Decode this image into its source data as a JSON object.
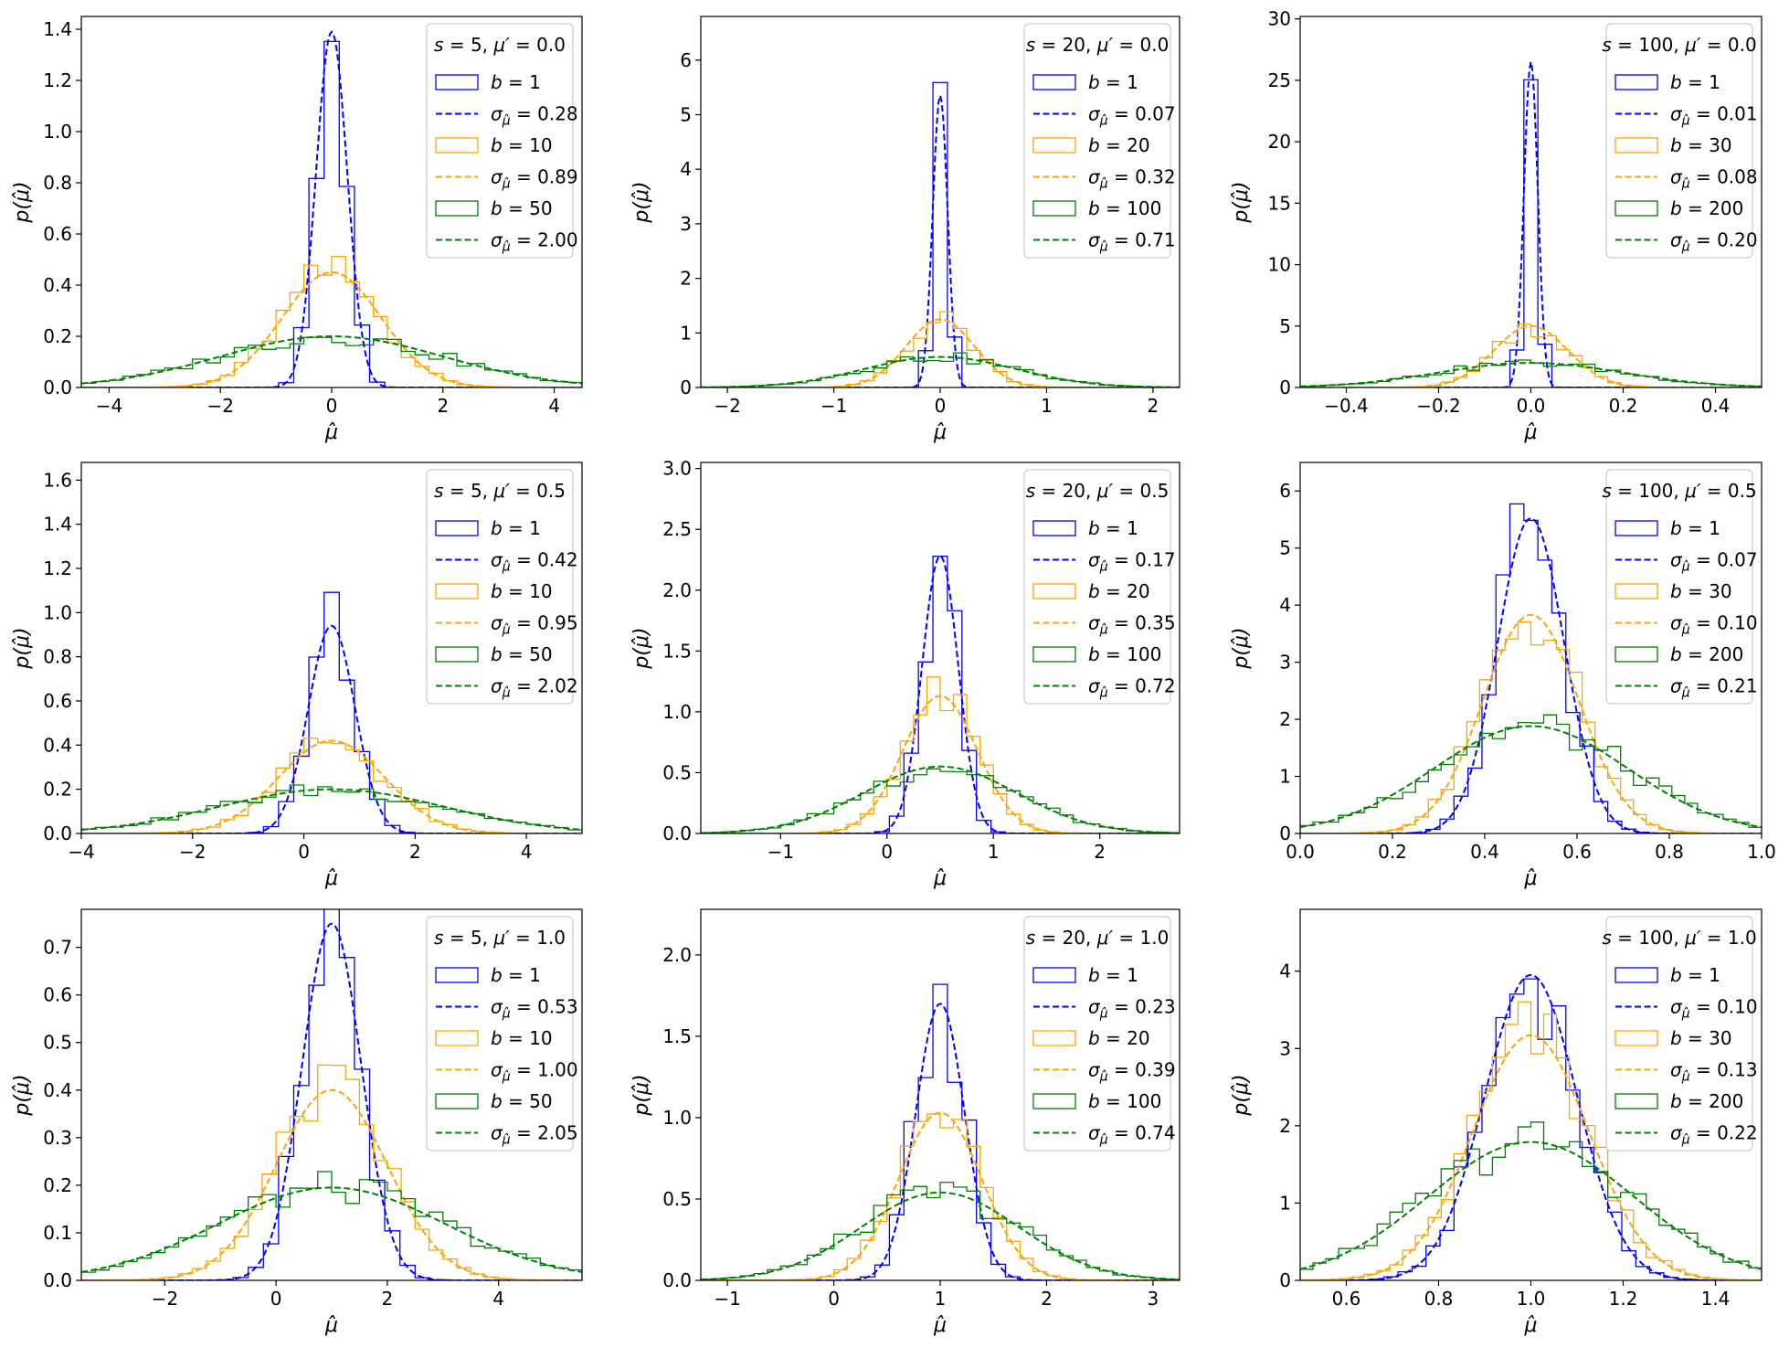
{
  "figure": {
    "ylabel": "p(μ̂)",
    "xlabel": "μ̂"
  },
  "colors": {
    "b_small": "#0000ff",
    "b_mid": "#ffa500",
    "b_large": "#008000"
  },
  "chart_data": [
    {
      "type": "histogram",
      "title_s": "5",
      "title_mu": "0.0",
      "mu": 0.0,
      "xlim": [
        -4.5,
        4.5
      ],
      "ylim": [
        0,
        1.45
      ],
      "xticks": [
        -4,
        -2,
        0,
        2,
        4
      ],
      "yticks": [
        0.0,
        0.2,
        0.4,
        0.6,
        0.8,
        1.0,
        1.2,
        1.4
      ],
      "series": [
        {
          "b": "1",
          "sigma": "0.28",
          "sigma_val": 0.28,
          "peak": 1.39
        },
        {
          "b": "10",
          "sigma": "0.89",
          "sigma_val": 0.89,
          "peak": 0.45
        },
        {
          "b": "50",
          "sigma": "2.00",
          "sigma_val": 2.0,
          "peak": 0.2
        }
      ]
    },
    {
      "type": "histogram",
      "title_s": "20",
      "title_mu": "0.0",
      "mu": 0.0,
      "xlim": [
        -2.25,
        2.25
      ],
      "ylim": [
        0,
        6.8
      ],
      "xticks": [
        -2,
        -1,
        0,
        1,
        2
      ],
      "yticks": [
        0,
        1,
        2,
        3,
        4,
        5,
        6
      ],
      "series": [
        {
          "b": "1",
          "sigma": "0.07",
          "sigma_val": 0.07,
          "peak": 5.35
        },
        {
          "b": "20",
          "sigma": "0.32",
          "sigma_val": 0.32,
          "peak": 1.25
        },
        {
          "b": "100",
          "sigma": "0.71",
          "sigma_val": 0.71,
          "peak": 0.56
        }
      ]
    },
    {
      "type": "histogram",
      "title_s": "100",
      "title_mu": "0.0",
      "mu": 0.0,
      "xlim": [
        -0.5,
        0.5
      ],
      "ylim": [
        0,
        30.2
      ],
      "xticks": [
        -0.4,
        -0.2,
        0.0,
        0.2,
        0.4
      ],
      "yticks": [
        0,
        5,
        10,
        15,
        20,
        25,
        30
      ],
      "series": [
        {
          "b": "1",
          "sigma": "0.01",
          "sigma_val": 0.015,
          "peak": 26.5
        },
        {
          "b": "30",
          "sigma": "0.08",
          "sigma_val": 0.08,
          "peak": 5.0
        },
        {
          "b": "200",
          "sigma": "0.20",
          "sigma_val": 0.2,
          "peak": 2.0
        }
      ]
    },
    {
      "type": "histogram",
      "title_s": "5",
      "title_mu": "0.5",
      "mu": 0.5,
      "xlim": [
        -4,
        5
      ],
      "ylim": [
        0,
        1.68
      ],
      "xticks": [
        -4,
        -2,
        0,
        2,
        4
      ],
      "yticks": [
        0.0,
        0.2,
        0.4,
        0.6,
        0.8,
        1.0,
        1.2,
        1.4,
        1.6
      ],
      "series": [
        {
          "b": "1",
          "sigma": "0.42",
          "sigma_val": 0.42,
          "peak": 0.94
        },
        {
          "b": "10",
          "sigma": "0.95",
          "sigma_val": 0.95,
          "peak": 0.42
        },
        {
          "b": "50",
          "sigma": "2.02",
          "sigma_val": 2.02,
          "peak": 0.2
        }
      ]
    },
    {
      "type": "histogram",
      "title_s": "20",
      "title_mu": "0.5",
      "mu": 0.5,
      "xlim": [
        -1.75,
        2.75
      ],
      "ylim": [
        0,
        3.05
      ],
      "xticks": [
        -1,
        0,
        1,
        2
      ],
      "yticks": [
        0.0,
        0.5,
        1.0,
        1.5,
        2.0,
        2.5,
        3.0
      ],
      "series": [
        {
          "b": "1",
          "sigma": "0.17",
          "sigma_val": 0.17,
          "peak": 2.28
        },
        {
          "b": "20",
          "sigma": "0.35",
          "sigma_val": 0.35,
          "peak": 1.13
        },
        {
          "b": "100",
          "sigma": "0.72",
          "sigma_val": 0.72,
          "peak": 0.55
        }
      ]
    },
    {
      "type": "histogram",
      "title_s": "100",
      "title_mu": "0.5",
      "mu": 0.5,
      "xlim": [
        0.0,
        1.0
      ],
      "ylim": [
        0,
        6.5
      ],
      "xticks": [
        0.0,
        0.2,
        0.4,
        0.6,
        0.8,
        1.0
      ],
      "yticks": [
        0,
        1,
        2,
        3,
        4,
        5,
        6
      ],
      "series": [
        {
          "b": "1",
          "sigma": "0.07",
          "sigma_val": 0.072,
          "peak": 5.52
        },
        {
          "b": "30",
          "sigma": "0.10",
          "sigma_val": 0.104,
          "peak": 3.83
        },
        {
          "b": "200",
          "sigma": "0.21",
          "sigma_val": 0.21,
          "peak": 1.88
        }
      ]
    },
    {
      "type": "histogram",
      "title_s": "5",
      "title_mu": "1.0",
      "mu": 1.0,
      "xlim": [
        -3.5,
        5.5
      ],
      "ylim": [
        0,
        0.78
      ],
      "xticks": [
        -2,
        0,
        2,
        4
      ],
      "yticks": [
        0.0,
        0.1,
        0.2,
        0.3,
        0.4,
        0.5,
        0.6,
        0.7
      ],
      "series": [
        {
          "b": "1",
          "sigma": "0.53",
          "sigma_val": 0.53,
          "peak": 0.75
        },
        {
          "b": "10",
          "sigma": "1.00",
          "sigma_val": 1.0,
          "peak": 0.4
        },
        {
          "b": "50",
          "sigma": "2.05",
          "sigma_val": 2.05,
          "peak": 0.195
        }
      ]
    },
    {
      "type": "histogram",
      "title_s": "20",
      "title_mu": "1.0",
      "mu": 1.0,
      "xlim": [
        -1.25,
        3.25
      ],
      "ylim": [
        0,
        2.28
      ],
      "xticks": [
        -1,
        0,
        1,
        2,
        3
      ],
      "yticks": [
        0.0,
        0.5,
        1.0,
        1.5,
        2.0
      ],
      "series": [
        {
          "b": "1",
          "sigma": "0.23",
          "sigma_val": 0.23,
          "peak": 1.7
        },
        {
          "b": "20",
          "sigma": "0.39",
          "sigma_val": 0.39,
          "peak": 1.03
        },
        {
          "b": "100",
          "sigma": "0.74",
          "sigma_val": 0.74,
          "peak": 0.54
        }
      ]
    },
    {
      "type": "histogram",
      "title_s": "100",
      "title_mu": "1.0",
      "mu": 1.0,
      "xlim": [
        0.5,
        1.5
      ],
      "ylim": [
        0,
        4.8
      ],
      "xticks": [
        0.6,
        0.8,
        1.0,
        1.2,
        1.4
      ],
      "yticks": [
        0,
        1,
        2,
        3,
        4
      ],
      "series": [
        {
          "b": "1",
          "sigma": "0.10",
          "sigma_val": 0.1,
          "peak": 3.95
        },
        {
          "b": "30",
          "sigma": "0.13",
          "sigma_val": 0.126,
          "peak": 3.17
        },
        {
          "b": "200",
          "sigma": "0.22",
          "sigma_val": 0.223,
          "peak": 1.79
        }
      ]
    }
  ]
}
